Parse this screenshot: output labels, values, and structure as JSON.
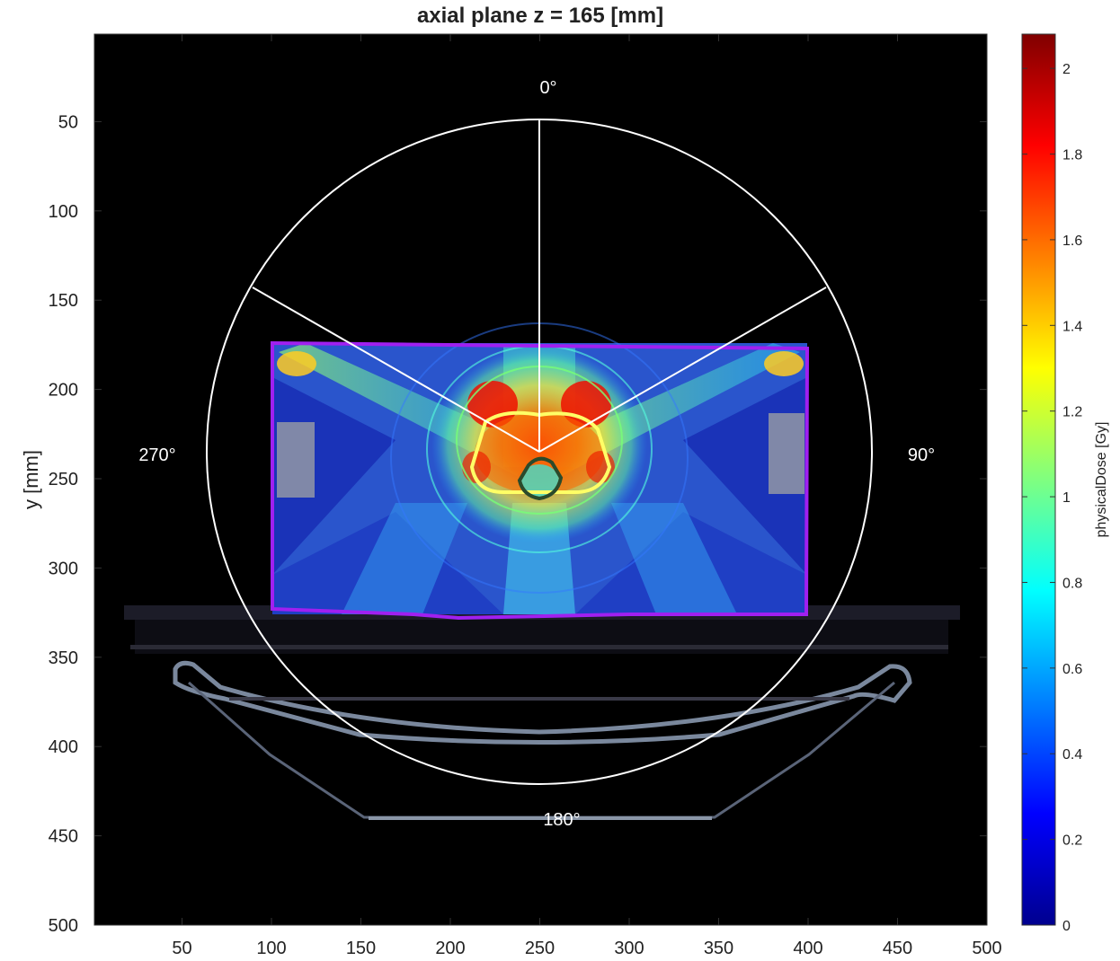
{
  "figure": {
    "title": "axial plane z = 165 [mm]",
    "xlabel": "",
    "ylabel": "y [mm]",
    "colorbar_label": "physicalDose [Gy]"
  },
  "chart_data": {
    "type": "heatmap",
    "title": "axial plane z = 165 [mm]",
    "ylabel": "y [mm]",
    "xlim": [
      1,
      500
    ],
    "ylim": [
      1,
      500
    ],
    "y_reversed": true,
    "x_ticks": [
      "50",
      "100",
      "150",
      "200",
      "250",
      "300",
      "350",
      "400",
      "450",
      "500"
    ],
    "x_tick_values": [
      50,
      100,
      150,
      200,
      250,
      300,
      350,
      400,
      450,
      500
    ],
    "y_ticks": [
      "50",
      "100",
      "150",
      "200",
      "250",
      "300",
      "350",
      "400",
      "450",
      "500"
    ],
    "y_tick_values": [
      50,
      100,
      150,
      200,
      250,
      300,
      350,
      400,
      450,
      500
    ],
    "colormap": "jet",
    "colorbar": {
      "label": "physicalDose [Gy]",
      "range": [
        0,
        2.08
      ],
      "ticks": [
        "0",
        "0.2",
        "0.4",
        "0.6",
        "0.8",
        "1",
        "1.2",
        "1.4",
        "1.6",
        "1.8",
        "2"
      ],
      "tick_values": [
        0,
        0.2,
        0.4,
        0.6,
        0.8,
        1,
        1.2,
        1.4,
        1.6,
        1.8,
        2
      ]
    },
    "gantry_angles": {
      "labels": [
        "0°",
        "90°",
        "180°",
        "270°"
      ],
      "beam_angles_deg": [
        0,
        300,
        60
      ],
      "isocenter": [
        255,
        237
      ],
      "radius_mm": 187
    },
    "dose_region": {
      "x": [
        104,
        404
      ],
      "y": [
        177,
        327
      ]
    },
    "structures": [
      {
        "name": "body",
        "color": "#a020f0"
      },
      {
        "name": "target",
        "color": "#ffff66"
      },
      {
        "name": "organ_at_risk",
        "color": "#2f4f2f"
      }
    ]
  }
}
